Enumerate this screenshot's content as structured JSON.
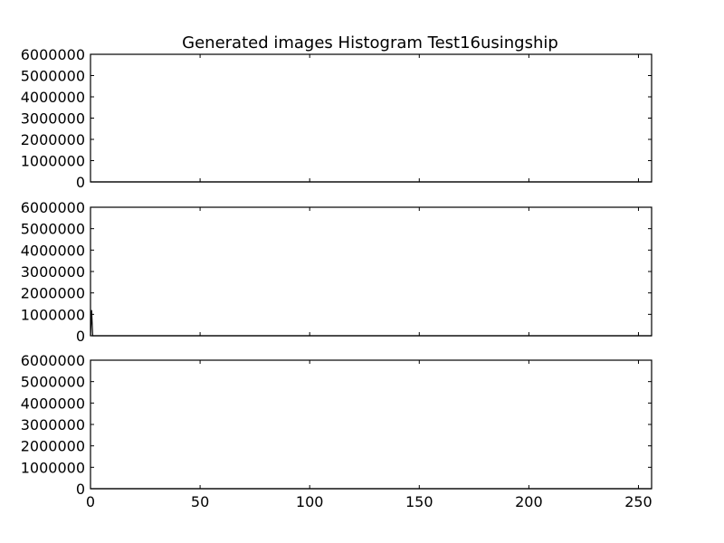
{
  "chart_data": [
    {
      "type": "line",
      "title": "Generated images Histogram Test16usingship",
      "xlim": [
        0,
        256
      ],
      "ylim": [
        0,
        6000000
      ],
      "xticks": [
        0,
        50,
        100,
        150,
        200,
        250
      ],
      "yticks": [
        0,
        1000000,
        2000000,
        3000000,
        4000000,
        5000000,
        6000000
      ],
      "show_xtick_labels": false,
      "series": [
        {
          "x": [
            0,
            10,
            20,
            30,
            40,
            50,
            60,
            65,
            70,
            256
          ],
          "y": [
            0,
            0,
            0,
            0,
            0,
            0,
            0,
            0,
            0,
            0
          ]
        }
      ]
    },
    {
      "type": "line",
      "title": "",
      "xlim": [
        0,
        256
      ],
      "ylim": [
        0,
        6000000
      ],
      "xticks": [
        0,
        50,
        100,
        150,
        200,
        250
      ],
      "yticks": [
        0,
        1000000,
        2000000,
        3000000,
        4000000,
        5000000,
        6000000
      ],
      "show_xtick_labels": false,
      "series": [
        {
          "x": [
            0,
            0.5,
            1,
            20,
            50,
            80,
            100,
            116,
            120,
            256
          ],
          "y": [
            0,
            1200000,
            0,
            0,
            0,
            0,
            0,
            0,
            0,
            0
          ]
        }
      ]
    },
    {
      "type": "line",
      "title": "",
      "xlim": [
        0,
        256
      ],
      "ylim": [
        0,
        6000000
      ],
      "xticks": [
        0,
        50,
        100,
        150,
        200,
        250
      ],
      "yticks": [
        0,
        1000000,
        2000000,
        3000000,
        4000000,
        5000000,
        6000000
      ],
      "show_xtick_labels": true,
      "series": [
        {
          "x": [
            0,
            10,
            20,
            30,
            40,
            45,
            50,
            256
          ],
          "y": [
            0,
            0,
            0,
            0,
            0,
            0,
            0,
            0
          ]
        }
      ]
    }
  ]
}
